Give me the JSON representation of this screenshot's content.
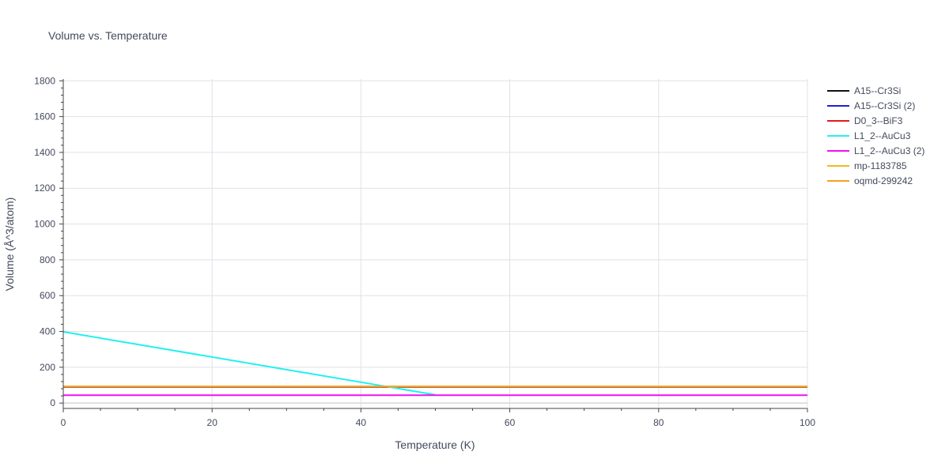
{
  "chart_data": {
    "type": "line",
    "title": "Volume vs. Temperature",
    "xlabel": "Temperature (K)",
    "ylabel": "Volume (Å^3/atom)",
    "xlim": [
      0,
      100
    ],
    "ylim": [
      -30,
      1810
    ],
    "xticks": [
      0,
      20,
      40,
      60,
      80,
      100
    ],
    "yticks": [
      0,
      200,
      400,
      600,
      800,
      1000,
      1200,
      1400,
      1600,
      1800
    ],
    "grid": true,
    "legend_position": "top-right",
    "series": [
      {
        "name": "A15--Cr3Si",
        "color": "#111111",
        "x": [
          0,
          100
        ],
        "y": [
          90,
          90
        ]
      },
      {
        "name": "A15--Cr3Si (2)",
        "color": "#1f1fd6",
        "x": [
          0,
          100
        ],
        "y": [
          90,
          90
        ]
      },
      {
        "name": "D0_3--BiF3",
        "color": "#e31a1c",
        "x": [
          0,
          100
        ],
        "y": [
          91,
          91
        ]
      },
      {
        "name": "L1_2--AuCu3",
        "color": "#22f0f0",
        "x": [
          0,
          50
        ],
        "y": [
          398,
          46
        ]
      },
      {
        "name": "L1_2--AuCu3 (2)",
        "color": "#ee11ee",
        "x": [
          0,
          100
        ],
        "y": [
          44,
          44
        ]
      },
      {
        "name": "mp-1183785",
        "color": "#f5b81c",
        "x": [
          0,
          100
        ],
        "y": [
          93,
          93
        ]
      },
      {
        "name": "oqmd-299242",
        "color": "#f5a11c",
        "x": [
          0,
          100
        ],
        "y": [
          92,
          92
        ]
      }
    ]
  }
}
